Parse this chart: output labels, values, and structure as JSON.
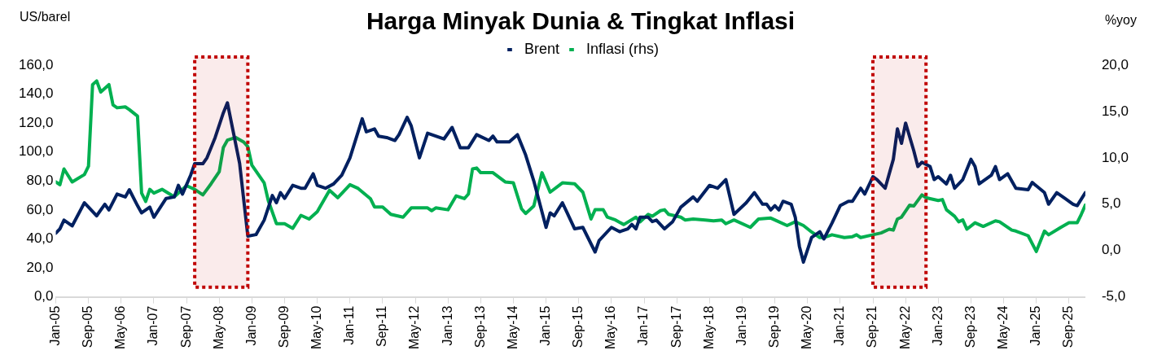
{
  "chart_data": {
    "type": "line",
    "title": "Harga Minyak Dunia & Tingkat Inflasi",
    "ylabel": "US/barel",
    "y2label": "%yoy",
    "xlim": [
      "2005-01",
      "2026-01"
    ],
    "xticks": [
      {
        "value": "2005-01",
        "label": "Jan-05"
      },
      {
        "value": "2005-09",
        "label": "Sep-05"
      },
      {
        "value": "2006-05",
        "label": "May-06"
      },
      {
        "value": "2007-01",
        "label": "Jan-07"
      },
      {
        "value": "2007-09",
        "label": "Sep-07"
      },
      {
        "value": "2008-05",
        "label": "May-08"
      },
      {
        "value": "2009-01",
        "label": "Jan-09"
      },
      {
        "value": "2009-09",
        "label": "Sep-09"
      },
      {
        "value": "2010-05",
        "label": "May-10"
      },
      {
        "value": "2011-01",
        "label": "Jan-11"
      },
      {
        "value": "2011-09",
        "label": "Sep-11"
      },
      {
        "value": "2012-05",
        "label": "May-12"
      },
      {
        "value": "2013-01",
        "label": "Jan-13"
      },
      {
        "value": "2013-09",
        "label": "Sep-13"
      },
      {
        "value": "2014-05",
        "label": "May-14"
      },
      {
        "value": "2015-01",
        "label": "Jan-15"
      },
      {
        "value": "2015-09",
        "label": "Sep-15"
      },
      {
        "value": "2016-05",
        "label": "May-16"
      },
      {
        "value": "2017-01",
        "label": "Jan-17"
      },
      {
        "value": "2017-09",
        "label": "Sep-17"
      },
      {
        "value": "2018-05",
        "label": "May-18"
      },
      {
        "value": "2019-01",
        "label": "Jan-19"
      },
      {
        "value": "2019-09",
        "label": "Sep-19"
      },
      {
        "value": "2020-05",
        "label": "May-20"
      },
      {
        "value": "2021-01",
        "label": "Jan-21"
      },
      {
        "value": "2021-09",
        "label": "Sep-21"
      },
      {
        "value": "2022-05",
        "label": "May-22"
      },
      {
        "value": "2023-01",
        "label": "Jan-23"
      },
      {
        "value": "2023-09",
        "label": "Sep-23"
      },
      {
        "value": "2024-05",
        "label": "May-24"
      },
      {
        "value": "2025-01",
        "label": "Jan-25"
      },
      {
        "value": "2025-09",
        "label": "Sep-25"
      }
    ],
    "ylim": [
      0,
      160
    ],
    "yticks": [
      {
        "value": 0,
        "label": "0,0"
      },
      {
        "value": 20,
        "label": "20,0"
      },
      {
        "value": 40,
        "label": "40,0"
      },
      {
        "value": 60,
        "label": "60,0"
      },
      {
        "value": 80,
        "label": "80,0"
      },
      {
        "value": 100,
        "label": "100,0"
      },
      {
        "value": 120,
        "label": "120,0"
      },
      {
        "value": 140,
        "label": "140,0"
      },
      {
        "value": 160,
        "label": "160,0"
      }
    ],
    "y2lim": [
      -5,
      20
    ],
    "y2ticks": [
      {
        "value": -5,
        "label": "-5,0"
      },
      {
        "value": 0,
        "label": "0,0"
      },
      {
        "value": 5,
        "label": "5,0"
      },
      {
        "value": 10,
        "label": "10,0"
      },
      {
        "value": 15,
        "label": "15,0"
      },
      {
        "value": 20,
        "label": "20,0"
      }
    ],
    "grid": false,
    "legend": "top",
    "marker": "none",
    "line_style": "solid",
    "bands": [
      {
        "axis": "x",
        "from": "2007-11",
        "to": "2008-12",
        "color": "#c00000"
      },
      {
        "axis": "x",
        "from": "2021-09",
        "to": "2022-10",
        "color": "#c00000"
      }
    ],
    "series": [
      {
        "name": "Brent",
        "color": "#002060",
        "x": [
          "2005-01",
          "2005-02",
          "2005-03",
          "2005-05",
          "2005-08",
          "2005-11",
          "2006-01",
          "2006-02",
          "2006-04",
          "2006-06",
          "2006-07",
          "2006-09",
          "2006-10",
          "2006-12",
          "2007-01",
          "2007-04",
          "2007-06",
          "2007-07",
          "2007-08",
          "2007-10",
          "2007-11",
          "2008-01",
          "2008-02",
          "2008-04",
          "2008-06",
          "2008-07",
          "2008-10",
          "2008-12",
          "2009-02",
          "2009-04",
          "2009-06",
          "2009-07",
          "2009-08",
          "2009-09",
          "2009-11",
          "2010-01",
          "2010-02",
          "2010-04",
          "2010-05",
          "2010-07",
          "2010-09",
          "2010-11",
          "2011-01",
          "2011-04",
          "2011-05",
          "2011-07",
          "2011-08",
          "2011-10",
          "2011-12",
          "2012-01",
          "2012-03",
          "2012-04",
          "2012-06",
          "2012-08",
          "2012-10",
          "2012-12",
          "2013-02",
          "2013-04",
          "2013-06",
          "2013-08",
          "2013-11",
          "2013-12",
          "2014-01",
          "2014-04",
          "2014-06",
          "2014-08",
          "2014-10",
          "2015-01",
          "2015-02",
          "2015-03",
          "2015-05",
          "2015-06",
          "2015-08",
          "2015-10",
          "2016-01",
          "2016-02",
          "2016-05",
          "2016-07",
          "2016-09",
          "2016-10",
          "2016-11",
          "2016-12",
          "2017-02",
          "2017-03",
          "2017-04",
          "2017-06",
          "2017-08",
          "2017-10",
          "2018-01",
          "2018-02",
          "2018-05",
          "2018-07",
          "2018-09",
          "2018-11",
          "2019-02",
          "2019-04",
          "2019-06",
          "2019-07",
          "2019-08",
          "2019-09",
          "2019-10",
          "2019-11",
          "2020-01",
          "2020-02",
          "2020-03",
          "2020-04",
          "2020-06",
          "2020-08",
          "2020-09",
          "2020-11",
          "2021-01",
          "2021-03",
          "2021-04",
          "2021-06",
          "2021-07",
          "2021-09",
          "2021-10",
          "2021-12",
          "2022-02",
          "2022-03",
          "2022-04",
          "2022-05",
          "2022-07",
          "2022-08",
          "2022-09",
          "2022-11",
          "2022-12",
          "2023-01",
          "2023-03",
          "2023-04",
          "2023-05",
          "2023-07",
          "2023-09",
          "2023-10",
          "2023-11",
          "2024-02",
          "2024-03",
          "2024-04",
          "2024-06",
          "2024-08",
          "2024-11",
          "2024-12",
          "2025-03",
          "2025-04",
          "2025-06",
          "2025-08",
          "2025-10",
          "2025-11",
          "2026-01"
        ],
        "values": [
          44,
          47,
          53,
          49,
          65,
          56,
          64,
          60,
          71,
          69,
          74,
          63,
          58,
          62,
          55,
          68,
          69,
          77,
          71,
          84,
          92,
          92,
          96,
          110,
          127,
          134,
          92,
          42,
          43,
          53,
          70,
          65,
          72,
          68,
          77,
          75,
          75,
          85,
          77,
          75,
          78,
          84,
          96,
          123,
          114,
          116,
          111,
          110,
          108,
          112,
          124,
          118,
          96,
          113,
          111,
          109,
          117,
          103,
          103,
          112,
          108,
          111,
          107,
          107,
          112,
          98,
          80,
          48,
          58,
          56,
          65,
          59,
          47,
          48,
          31,
          39,
          48,
          45,
          47,
          50,
          47,
          55,
          55,
          52,
          53,
          47,
          52,
          62,
          69,
          66,
          77,
          75,
          81,
          57,
          65,
          72,
          64,
          64,
          60,
          63,
          60,
          66,
          64,
          55,
          35,
          24,
          41,
          45,
          40,
          51,
          63,
          66,
          66,
          75,
          71,
          83,
          81,
          75,
          95,
          116,
          106,
          120,
          101,
          90,
          93,
          90,
          81,
          83,
          78,
          84,
          75,
          81,
          95,
          90,
          78,
          84,
          90,
          81,
          85,
          75,
          74,
          79,
          72,
          64,
          72,
          68,
          64,
          63,
          72
        ]
      },
      {
        "name": "Inflasi (rhs)",
        "color": "#00b050",
        "axis": "y2",
        "x": [
          "2005-01",
          "2005-02",
          "2005-03",
          "2005-05",
          "2005-08",
          "2005-09",
          "2005-10",
          "2005-11",
          "2005-12",
          "2006-02",
          "2006-03",
          "2006-04",
          "2006-06",
          "2006-07",
          "2006-09",
          "2006-10",
          "2006-11",
          "2006-12",
          "2007-01",
          "2007-03",
          "2007-06",
          "2007-09",
          "2007-11",
          "2008-01",
          "2008-03",
          "2008-05",
          "2008-06",
          "2008-07",
          "2008-09",
          "2008-11",
          "2008-12",
          "2009-01",
          "2009-04",
          "2009-05",
          "2009-07",
          "2009-09",
          "2009-11",
          "2010-01",
          "2010-03",
          "2010-05",
          "2010-08",
          "2010-10",
          "2011-01",
          "2011-03",
          "2011-06",
          "2011-07",
          "2011-09",
          "2011-11",
          "2012-02",
          "2012-04",
          "2012-08",
          "2012-09",
          "2012-10",
          "2013-01",
          "2013-03",
          "2013-05",
          "2013-06",
          "2013-07",
          "2013-08",
          "2013-09",
          "2013-12",
          "2014-03",
          "2014-05",
          "2014-07",
          "2014-08",
          "2014-10",
          "2014-12",
          "2015-02",
          "2015-05",
          "2015-08",
          "2015-10",
          "2015-12",
          "2016-01",
          "2016-03",
          "2016-04",
          "2016-06",
          "2016-08",
          "2016-11",
          "2016-12",
          "2017-02",
          "2017-03",
          "2017-05",
          "2017-06",
          "2017-07",
          "2017-10",
          "2017-11",
          "2018-01",
          "2018-04",
          "2018-06",
          "2018-08",
          "2018-09",
          "2018-11",
          "2019-03",
          "2019-05",
          "2019-08",
          "2019-09",
          "2019-12",
          "2020-02",
          "2020-04",
          "2020-06",
          "2020-08",
          "2020-09",
          "2020-11",
          "2021-02",
          "2021-04",
          "2021-05",
          "2021-06",
          "2021-09",
          "2021-11",
          "2022-01",
          "2022-02",
          "2022-03",
          "2022-04",
          "2022-06",
          "2022-07",
          "2022-09",
          "2022-10",
          "2022-11",
          "2023-01",
          "2023-02",
          "2023-03",
          "2023-05",
          "2023-06",
          "2023-07",
          "2023-08",
          "2023-10",
          "2023-12",
          "2024-03",
          "2024-04",
          "2024-07",
          "2024-08",
          "2024-11",
          "2025-01",
          "2025-03",
          "2025-04",
          "2025-07",
          "2025-09",
          "2025-11",
          "2025-12",
          "2026-01"
        ],
        "values": [
          7.4,
          7.1,
          8.8,
          7.4,
          8.2,
          9.1,
          17.9,
          18.3,
          17.1,
          17.9,
          15.7,
          15.4,
          15.5,
          15.2,
          14.5,
          6.2,
          5.3,
          6.6,
          6.2,
          6.6,
          5.8,
          7.0,
          6.6,
          6.0,
          7.2,
          8.5,
          11.1,
          11.9,
          12.2,
          11.7,
          11.2,
          9.2,
          7.3,
          5.4,
          2.9,
          2.9,
          2.4,
          3.8,
          3.4,
          4.2,
          6.5,
          5.7,
          7.1,
          6.7,
          5.6,
          4.7,
          4.7,
          3.9,
          3.6,
          4.6,
          4.6,
          4.3,
          4.6,
          4.4,
          5.9,
          5.6,
          6.1,
          8.8,
          8.9,
          8.4,
          8.4,
          7.4,
          7.3,
          4.5,
          4.0,
          4.8,
          8.4,
          6.3,
          7.3,
          7.2,
          6.3,
          3.4,
          4.4,
          4.4,
          3.6,
          3.3,
          2.8,
          3.6,
          3.1,
          3.9,
          3.7,
          4.3,
          4.4,
          3.9,
          3.6,
          3.3,
          3.4,
          3.3,
          3.2,
          3.3,
          2.9,
          3.3,
          2.5,
          3.4,
          3.5,
          3.3,
          2.7,
          3.1,
          2.7,
          2.0,
          1.4,
          1.4,
          1.7,
          1.4,
          1.5,
          1.7,
          1.4,
          1.7,
          1.9,
          2.3,
          2.2,
          3.4,
          3.6,
          4.9,
          4.8,
          6.0,
          5.7,
          5.6,
          5.4,
          5.5,
          4.4,
          3.7,
          3.1,
          3.3,
          2.3,
          3.0,
          2.6,
          3.2,
          3.1,
          2.2,
          2.1,
          1.6,
          -0.1,
          2.1,
          1.7,
          2.5,
          3.0,
          3.0,
          3.9,
          4.9
        ]
      }
    ]
  }
}
